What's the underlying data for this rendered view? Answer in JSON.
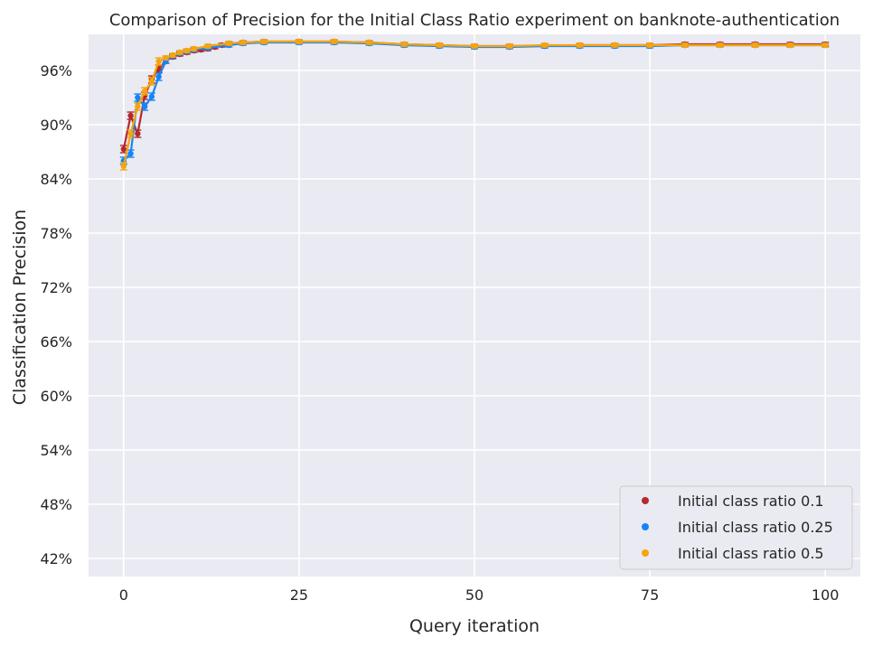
{
  "chart_data": {
    "type": "line",
    "title": "Comparison of Precision for the Initial Class Ratio experiment on banknote-authentication",
    "xlabel": "Query iteration",
    "ylabel": "Classification Precision",
    "xlim": [
      -5,
      105
    ],
    "ylim": [
      0.4,
      1.0
    ],
    "xticks": [
      0,
      25,
      50,
      75,
      100
    ],
    "yticks": [
      0.42,
      0.48,
      0.54,
      0.6,
      0.66,
      0.72,
      0.78,
      0.84,
      0.9,
      0.96
    ],
    "ytick_labels": [
      "42%",
      "48%",
      "54%",
      "60%",
      "66%",
      "72%",
      "78%",
      "84%",
      "90%",
      "96%"
    ],
    "grid": true,
    "legend_position": "lower-right",
    "series": [
      {
        "name": "Initial class ratio 0.1",
        "color": "#b22a2d",
        "points": [
          [
            0,
            0.873
          ],
          [
            1,
            0.91
          ],
          [
            2,
            0.89
          ],
          [
            3,
            0.932
          ],
          [
            4,
            0.95
          ],
          [
            5,
            0.962
          ],
          [
            6,
            0.97
          ],
          [
            7,
            0.975
          ],
          [
            8,
            0.978
          ],
          [
            9,
            0.98
          ],
          [
            10,
            0.982
          ],
          [
            11,
            0.983
          ],
          [
            12,
            0.984
          ],
          [
            13,
            0.986
          ],
          [
            14,
            0.988
          ],
          [
            15,
            0.99
          ],
          [
            17,
            0.991
          ],
          [
            20,
            0.992
          ],
          [
            25,
            0.992
          ],
          [
            30,
            0.992
          ],
          [
            35,
            0.991
          ],
          [
            40,
            0.989
          ],
          [
            45,
            0.988
          ],
          [
            50,
            0.987
          ],
          [
            55,
            0.987
          ],
          [
            60,
            0.987
          ],
          [
            65,
            0.988
          ],
          [
            70,
            0.988
          ],
          [
            75,
            0.988
          ],
          [
            80,
            0.989
          ],
          [
            85,
            0.989
          ],
          [
            90,
            0.989
          ],
          [
            95,
            0.989
          ],
          [
            100,
            0.989
          ]
        ]
      },
      {
        "name": "Initial class ratio 0.25",
        "color": "#1585f5",
        "points": [
          [
            0,
            0.86
          ],
          [
            1,
            0.868
          ],
          [
            2,
            0.93
          ],
          [
            3,
            0.92
          ],
          [
            4,
            0.931
          ],
          [
            5,
            0.953
          ],
          [
            6,
            0.97
          ],
          [
            7,
            0.976
          ],
          [
            8,
            0.979
          ],
          [
            9,
            0.981
          ],
          [
            10,
            0.983
          ],
          [
            12,
            0.985
          ],
          [
            15,
            0.988
          ],
          [
            17,
            0.99
          ],
          [
            20,
            0.991
          ],
          [
            25,
            0.991
          ],
          [
            30,
            0.991
          ],
          [
            35,
            0.99
          ],
          [
            40,
            0.988
          ],
          [
            45,
            0.987
          ],
          [
            50,
            0.986
          ],
          [
            55,
            0.986
          ],
          [
            60,
            0.987
          ],
          [
            65,
            0.987
          ],
          [
            70,
            0.987
          ],
          [
            75,
            0.987
          ],
          [
            80,
            0.988
          ],
          [
            85,
            0.988
          ],
          [
            90,
            0.988
          ],
          [
            95,
            0.988
          ],
          [
            100,
            0.988
          ]
        ]
      },
      {
        "name": "Initial class ratio 0.5",
        "color": "#f5a40f",
        "points": [
          [
            0,
            0.854
          ],
          [
            1,
            0.89
          ],
          [
            2,
            0.92
          ],
          [
            3,
            0.937
          ],
          [
            4,
            0.948
          ],
          [
            5,
            0.97
          ],
          [
            6,
            0.974
          ],
          [
            7,
            0.977
          ],
          [
            8,
            0.98
          ],
          [
            9,
            0.982
          ],
          [
            10,
            0.984
          ],
          [
            12,
            0.987
          ],
          [
            15,
            0.99
          ],
          [
            17,
            0.991
          ],
          [
            20,
            0.992
          ],
          [
            25,
            0.992
          ],
          [
            30,
            0.992
          ],
          [
            35,
            0.991
          ],
          [
            40,
            0.989
          ],
          [
            45,
            0.988
          ],
          [
            50,
            0.987
          ],
          [
            55,
            0.987
          ],
          [
            60,
            0.988
          ],
          [
            65,
            0.988
          ],
          [
            70,
            0.988
          ],
          [
            75,
            0.988
          ],
          [
            80,
            0.988
          ],
          [
            85,
            0.988
          ],
          [
            90,
            0.988
          ],
          [
            95,
            0.988
          ],
          [
            100,
            0.988
          ]
        ]
      }
    ]
  }
}
